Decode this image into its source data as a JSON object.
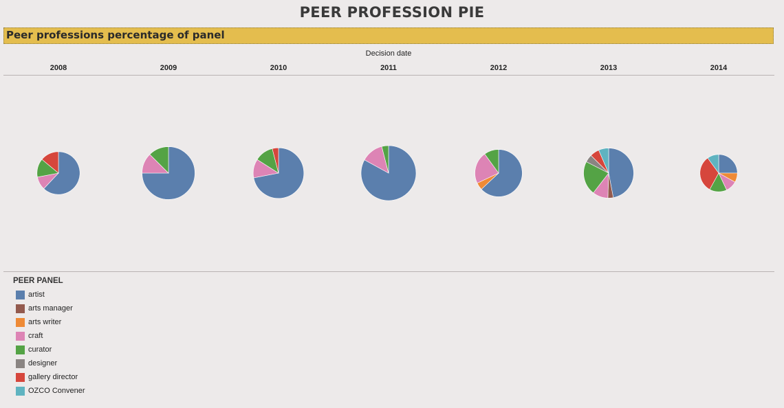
{
  "title": "PEER PROFESSION PIE",
  "subtitle": "Peer professions percentage of panel",
  "chart_data": {
    "type": "pie",
    "x_header": "Decision date",
    "legend_title": "PEER PANEL",
    "legend_placement": "bottom-left",
    "categories": [
      "artist",
      "arts manager",
      "arts writer",
      "craft",
      "curator",
      "designer",
      "gallery director",
      "OZCO Convener"
    ],
    "colors": [
      "#5b7fad",
      "#935a4e",
      "#ee8a36",
      "#dd84b5",
      "#54a345",
      "#8a8482",
      "#d6463c",
      "#5fb3c0"
    ],
    "pies": [
      {
        "year": "2008",
        "relative_size": 0.78,
        "values": {
          "artist": 0.62,
          "arts manager": 0,
          "arts writer": 0,
          "craft": 0.1,
          "curator": 0.14,
          "designer": 0,
          "gallery director": 0.14,
          "OZCO Convener": 0
        }
      },
      {
        "year": "2009",
        "relative_size": 0.96,
        "values": {
          "artist": 0.75,
          "arts manager": 0,
          "arts writer": 0,
          "craft": 0.125,
          "curator": 0.125,
          "designer": 0,
          "gallery director": 0,
          "OZCO Convener": 0
        }
      },
      {
        "year": "2010",
        "relative_size": 0.92,
        "values": {
          "artist": 0.72,
          "arts manager": 0,
          "arts writer": 0,
          "craft": 0.12,
          "curator": 0.12,
          "designer": 0,
          "gallery director": 0.04,
          "OZCO Convener": 0
        }
      },
      {
        "year": "2011",
        "relative_size": 1.0,
        "values": {
          "artist": 0.83,
          "arts manager": 0,
          "arts writer": 0,
          "craft": 0.13,
          "curator": 0.04,
          "designer": 0,
          "gallery director": 0,
          "OZCO Convener": 0
        }
      },
      {
        "year": "2012",
        "relative_size": 0.86,
        "values": {
          "artist": 0.63,
          "arts manager": 0,
          "arts writer": 0.05,
          "craft": 0.22,
          "curator": 0.1,
          "designer": 0,
          "gallery director": 0,
          "OZCO Convener": 0
        }
      },
      {
        "year": "2013",
        "relative_size": 0.91,
        "values": {
          "artist": 0.47,
          "arts manager": 0.035,
          "arts writer": 0,
          "craft": 0.1,
          "curator": 0.22,
          "designer": 0.05,
          "gallery director": 0.06,
          "OZCO Convener": 0.065
        }
      },
      {
        "year": "2014",
        "relative_size": 0.68,
        "values": {
          "artist": 0.25,
          "arts manager": 0,
          "arts writer": 0.08,
          "craft": 0.1,
          "curator": 0.15,
          "designer": 0,
          "gallery director": 0.32,
          "OZCO Convener": 0.1
        }
      }
    ]
  }
}
